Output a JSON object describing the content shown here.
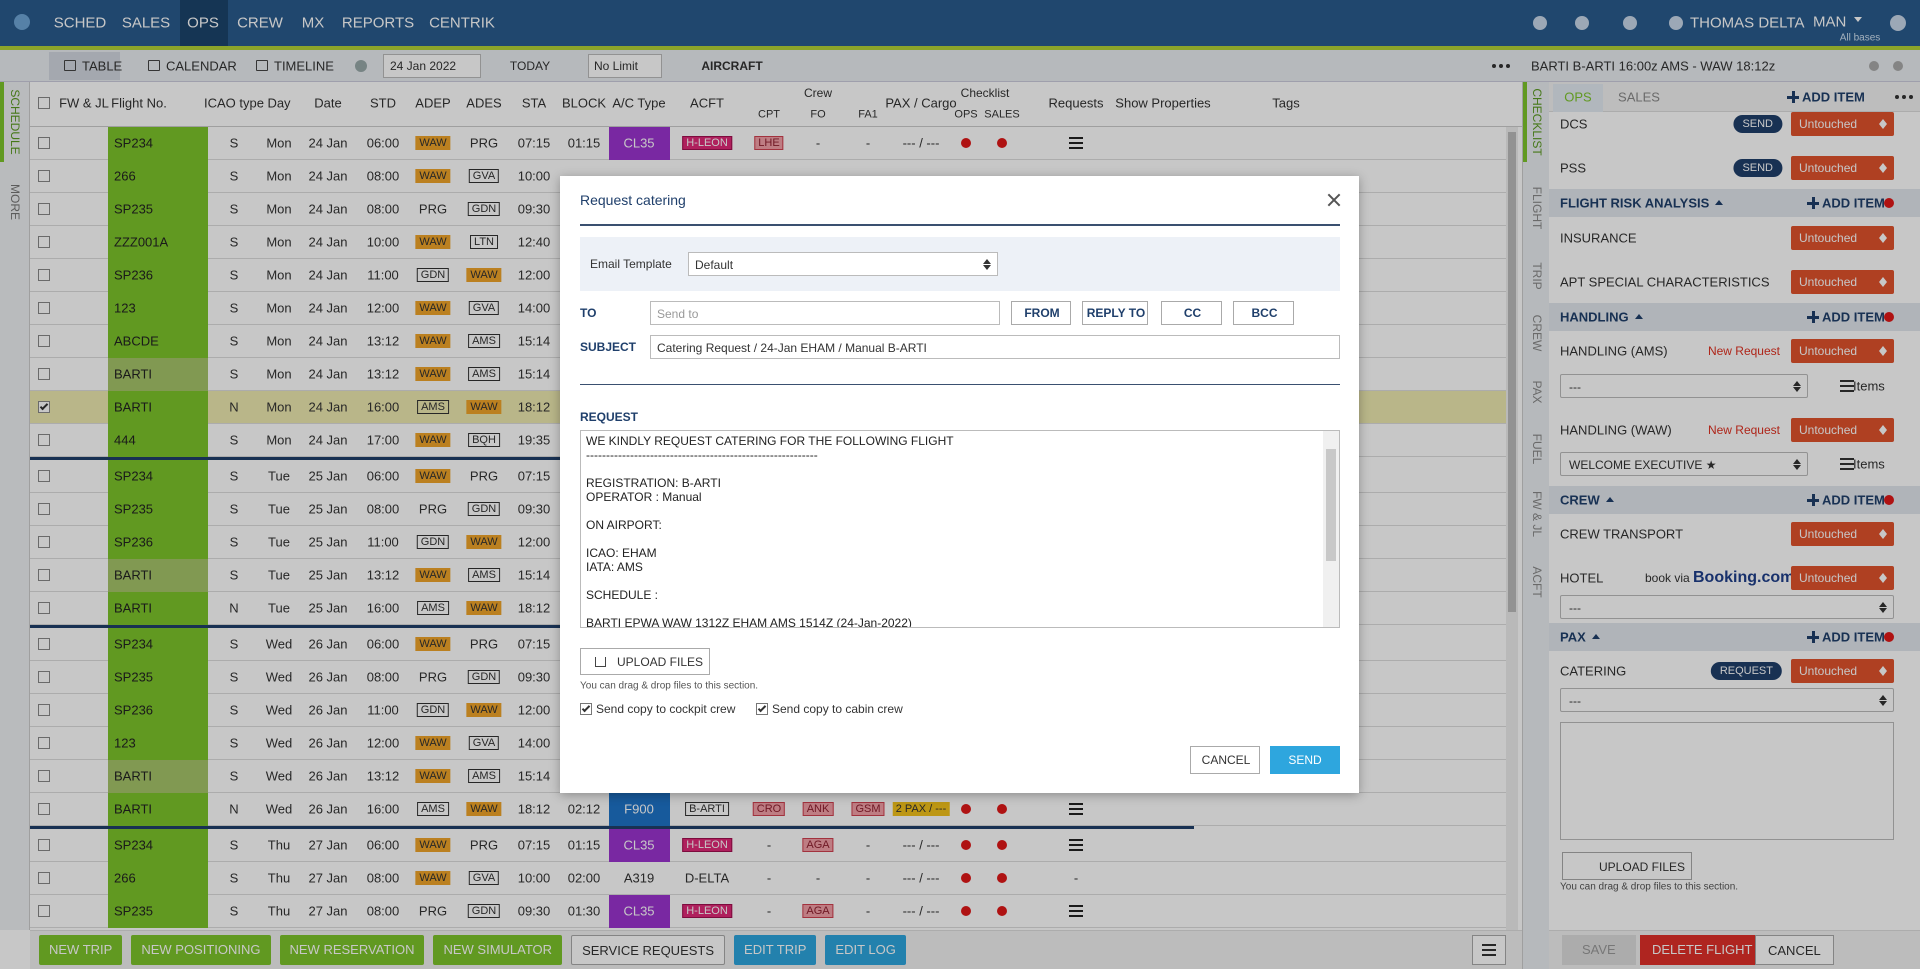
{
  "nav": {
    "items": [
      "SCHED",
      "SALES",
      "OPS",
      "CREW",
      "MX",
      "REPORTS",
      "CENTRIK"
    ],
    "user": "THOMAS DELTA",
    "base": "MAN",
    "base_note": "All bases"
  },
  "toolbar": {
    "views": [
      "TABLE",
      "CALENDAR",
      "TIMELINE"
    ],
    "date": "24 Jan 2022",
    "today": "TODAY",
    "limit": "No Limit",
    "aircraft": "AIRCRAFT"
  },
  "side_tabs": [
    "SCHEDULE",
    "MORE"
  ],
  "table": {
    "crew_group": "Crew",
    "checklist_group": "Checklist",
    "headers": [
      "FW & JL",
      "Flight No.",
      "ICAO type",
      "Day",
      "Date",
      "STD",
      "ADEP",
      "ADES",
      "STA",
      "BLOCK",
      "A/C Type",
      "ACFT",
      "CPT",
      "FO",
      "FA1",
      "PAX / Cargo",
      "OPS",
      "SALES",
      "Requests",
      "Show Properties",
      "Tags"
    ],
    "rows": [
      [
        "SP234",
        "S",
        "Mon",
        "24 Jan",
        "06:00",
        "WAW",
        "PRG",
        "07:15",
        "01:15",
        "CL35",
        "H-LEON",
        "LHE",
        "-",
        "-",
        "--- / ---",
        null
      ],
      [
        "266",
        "S",
        "Mon",
        "24 Jan",
        "08:00",
        "WAW",
        "GVA",
        "10:00"
      ],
      [
        "SP235",
        "S",
        "Mon",
        "24 Jan",
        "08:00",
        "PRG",
        "GDN",
        "09:30"
      ],
      [
        "ZZZ001A",
        "S",
        "Mon",
        "24 Jan",
        "10:00",
        "WAW",
        "LTN",
        "12:40"
      ],
      [
        "SP236",
        "S",
        "Mon",
        "24 Jan",
        "11:00",
        "GDN",
        "WAW",
        "12:00"
      ],
      [
        "123",
        "S",
        "Mon",
        "24 Jan",
        "12:00",
        "WAW",
        "GVA",
        "14:00"
      ],
      [
        "ABCDE",
        "S",
        "Mon",
        "24 Jan",
        "13:12",
        "WAW",
        "AMS",
        "15:14"
      ],
      [
        "BARTI",
        "S",
        "Mon",
        "24 Jan",
        "13:12",
        "WAW",
        "AMS",
        "15:14"
      ],
      [
        "BARTI",
        "N",
        "Mon",
        "24 Jan",
        "16:00",
        "AMS",
        "WAW",
        "18:12"
      ],
      [
        "444",
        "S",
        "Mon",
        "24 Jan",
        "17:00",
        "WAW",
        "BQH",
        "19:35"
      ],
      [
        "SP234",
        "S",
        "Tue",
        "25 Jan",
        "06:00",
        "WAW",
        "PRG",
        "07:15"
      ],
      [
        "SP235",
        "S",
        "Tue",
        "25 Jan",
        "08:00",
        "PRG",
        "GDN",
        "09:30"
      ],
      [
        "SP236",
        "S",
        "Tue",
        "25 Jan",
        "11:00",
        "GDN",
        "WAW",
        "12:00"
      ],
      [
        "BARTI",
        "S",
        "Tue",
        "25 Jan",
        "13:12",
        "WAW",
        "AMS",
        "15:14"
      ],
      [
        "BARTI",
        "N",
        "Tue",
        "25 Jan",
        "16:00",
        "AMS",
        "WAW",
        "18:12"
      ],
      [
        "SP234",
        "S",
        "Wed",
        "26 Jan",
        "06:00",
        "WAW",
        "PRG",
        "07:15"
      ],
      [
        "SP235",
        "S",
        "Wed",
        "26 Jan",
        "08:00",
        "PRG",
        "GDN",
        "09:30"
      ],
      [
        "SP236",
        "S",
        "Wed",
        "26 Jan",
        "11:00",
        "GDN",
        "WAW",
        "12:00"
      ],
      [
        "123",
        "S",
        "Wed",
        "26 Jan",
        "12:00",
        "WAW",
        "GVA",
        "14:00"
      ],
      [
        "BARTI",
        "S",
        "Wed",
        "26 Jan",
        "13:12",
        "WAW",
        "AMS",
        "15:14"
      ],
      [
        "BARTI",
        "N",
        "Wed",
        "26 Jan",
        "16:00",
        "AMS",
        "WAW",
        "18:12",
        "02:12",
        "F900",
        "B-ARTI",
        "CRO",
        "ANK",
        "GSM",
        "2 PAX / ---",
        null
      ],
      [
        "SP234",
        "S",
        "Thu",
        "27 Jan",
        "06:00",
        "WAW",
        "PRG",
        "07:15",
        "01:15",
        "CL35",
        "H-LEON",
        "-",
        "AGA",
        "-",
        "--- / ---",
        null
      ],
      [
        "266",
        "S",
        "Thu",
        "27 Jan",
        "08:00",
        "WAW",
        "GVA",
        "10:00",
        "02:00",
        "A319",
        "D-ELTA",
        "-",
        "-",
        "-",
        "--- / ---",
        "-"
      ],
      [
        "SP235",
        "S",
        "Thu",
        "27 Jan",
        "08:00",
        "PRG",
        "GDN",
        "09:30",
        "01:30",
        "CL35",
        "H-LEON",
        "-",
        "AGA",
        "-",
        "--- / ---",
        null
      ]
    ]
  },
  "bottom_buttons": [
    "NEW TRIP",
    "NEW POSITIONING",
    "NEW RESERVATION",
    "NEW SIMULATOR",
    "SERVICE REQUESTS",
    "EDIT TRIP",
    "EDIT LOG"
  ],
  "panel_tabs": [
    "CHECKLIST",
    "FLIGHT",
    "TRIP",
    "CREW",
    "PAX",
    "FUEL",
    "FW & JL",
    "ACFT"
  ],
  "panel": {
    "header": "BARTI B-ARTI 16:00z AMS - WAW 18:12z",
    "tabs": [
      "OPS",
      "SALES"
    ],
    "top_add": "ADD ITEM",
    "entries": [
      {
        "kind": "item",
        "label": "DCS",
        "badge": "SEND",
        "status": "Untouched"
      },
      {
        "kind": "item",
        "label": "PSS",
        "badge": "SEND",
        "status": "Untouched"
      },
      {
        "kind": "section",
        "label": "FLIGHT RISK ANALYSIS",
        "add": "ADD ITEM"
      },
      {
        "kind": "item",
        "label": "INSURANCE",
        "status": "Untouched"
      },
      {
        "kind": "item",
        "label": "APT SPECIAL CHARACTERISTICS",
        "status": "Untouched"
      },
      {
        "kind": "section",
        "label": "HANDLING",
        "add": "ADD ITEM"
      },
      {
        "kind": "item",
        "label": "HANDLING (AMS)",
        "note": "New Request",
        "status": "Untouched"
      },
      {
        "kind": "select",
        "value": "---",
        "extra": "Items"
      },
      {
        "kind": "item",
        "label": "HANDLING (WAW)",
        "note": "New Request",
        "status": "Untouched"
      },
      {
        "kind": "select",
        "value": "WELCOME EXECUTIVE ★",
        "extra": "Items"
      },
      {
        "kind": "section",
        "label": "CREW",
        "add": "ADD ITEM"
      },
      {
        "kind": "item",
        "label": "CREW TRANSPORT",
        "status": "Untouched"
      },
      {
        "kind": "item",
        "label": "HOTEL",
        "note": "book via",
        "brand": "Booking.com",
        "status": "Untouched"
      },
      {
        "kind": "select",
        "value": "---"
      },
      {
        "kind": "section",
        "label": "PAX",
        "add": "ADD ITEM"
      },
      {
        "kind": "item",
        "label": "CATERING",
        "badge": "REQUEST",
        "status": "Untouched"
      },
      {
        "kind": "select",
        "value": "---"
      }
    ],
    "upload": "UPLOAD FILES",
    "drop_hint": "You can drag & drop files to this section.",
    "buttons": [
      "SAVE",
      "DELETE FLIGHT",
      "CANCEL"
    ]
  },
  "modal": {
    "title": "Request catering",
    "template_label": "Email Template",
    "template": "Default",
    "to_label": "TO",
    "to_placeholder": "Send to",
    "to_buttons": [
      "FROM",
      "REPLY TO",
      "CC",
      "BCC"
    ],
    "subject_label": "SUBJECT",
    "subject": "Catering Request / 24-Jan EHAM / Manual B-ARTI",
    "request_label": "REQUEST",
    "request": "WE KINDLY REQUEST CATERING FOR THE FOLLOWING FLIGHT\n----------------------------------------------------------\n\nREGISTRATION: B-ARTI\nOPERATOR : Manual\n\nON AIRPORT:\n\nICAO: EHAM\nIATA: AMS\n\nSCHEDULE :\n\nBARTI EPWA WAW 1312Z EHAM AMS 1514Z (24-Jan-2022)",
    "upload": "UPLOAD FILES",
    "drop_hint": "You can drag & drop files to this section.",
    "copies": [
      "Send copy to cockpit crew",
      "Send copy to cabin crew"
    ],
    "cancel": "CANCEL",
    "send": "SEND"
  }
}
